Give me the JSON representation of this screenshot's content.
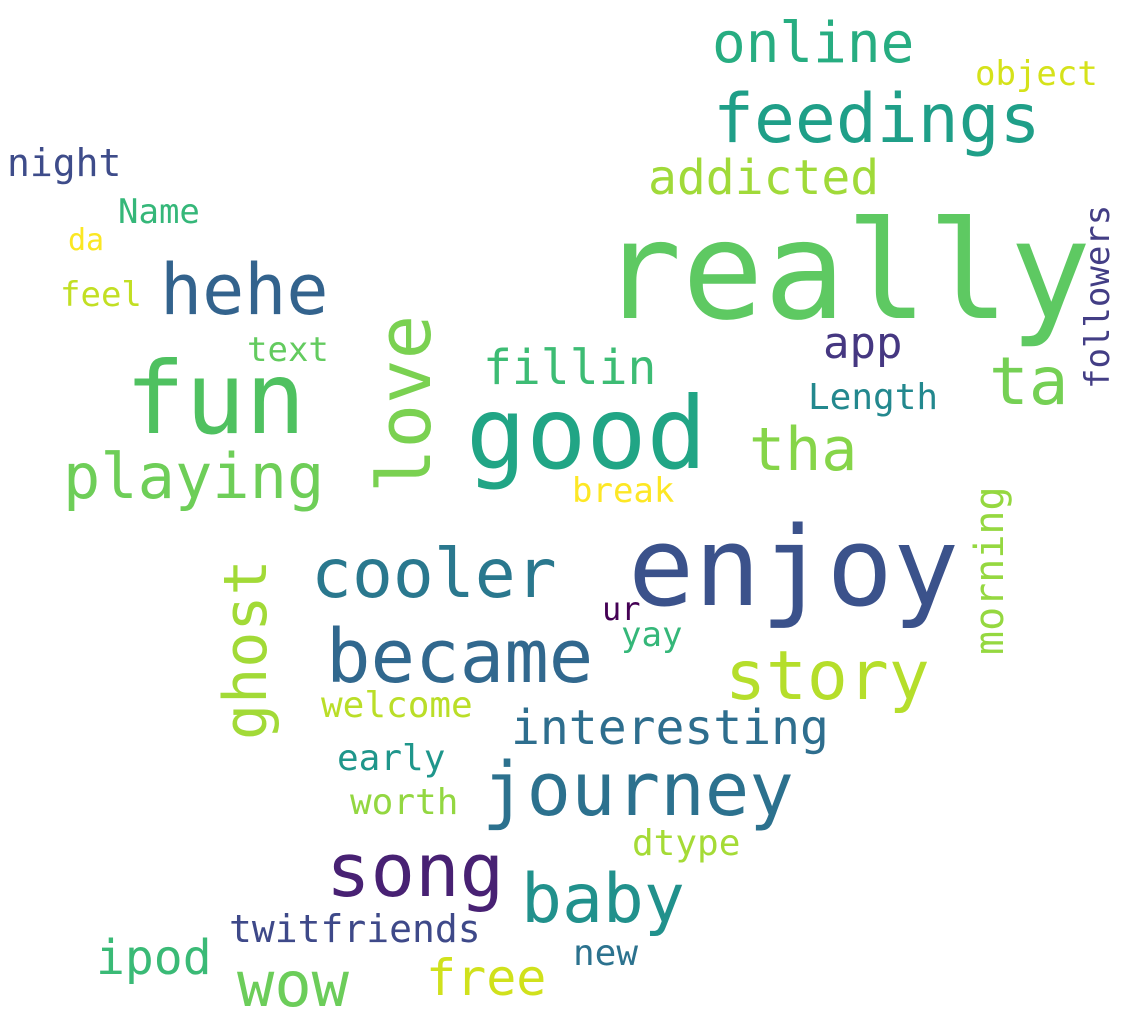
{
  "words": [
    {
      "text": "really",
      "color": "#5ec962",
      "vertical": false
    },
    {
      "text": "enjoy",
      "color": "#3b528b",
      "vertical": false
    },
    {
      "text": "good",
      "color": "#21a585",
      "vertical": false
    },
    {
      "text": "fun",
      "color": "#4fc160",
      "vertical": false
    },
    {
      "text": "love",
      "color": "#7ad151",
      "vertical": true
    },
    {
      "text": "feedings",
      "color": "#1f9f88",
      "vertical": false
    },
    {
      "text": "became",
      "color": "#31688e",
      "vertical": false
    },
    {
      "text": "journey",
      "color": "#2c718e",
      "vertical": false
    },
    {
      "text": "cooler",
      "color": "#2a788e",
      "vertical": false
    },
    {
      "text": "song",
      "color": "#482173",
      "vertical": false
    },
    {
      "text": "hehe",
      "color": "#33638d",
      "vertical": false
    },
    {
      "text": "story",
      "color": "#b5de2b",
      "vertical": false
    },
    {
      "text": "baby",
      "color": "#21918c",
      "vertical": false
    },
    {
      "text": "playing",
      "color": "#6ece58",
      "vertical": false
    },
    {
      "text": "tha",
      "color": "#86d549",
      "vertical": false
    },
    {
      "text": "ghost",
      "color": "#a2da37",
      "vertical": true
    },
    {
      "text": "ta",
      "color": "#75d054",
      "vertical": false
    },
    {
      "text": "wow",
      "color": "#6ccd5a",
      "vertical": false
    },
    {
      "text": "online",
      "color": "#27ad81",
      "vertical": false
    },
    {
      "text": "interesting",
      "color": "#2e6e8e",
      "vertical": false
    },
    {
      "text": "free",
      "color": "#d0e11c",
      "vertical": false
    },
    {
      "text": "addicted",
      "color": "#a0da39",
      "vertical": false
    },
    {
      "text": "fillin",
      "color": "#3dbc74",
      "vertical": false
    },
    {
      "text": "ipod",
      "color": "#3aba76",
      "vertical": false
    },
    {
      "text": "app",
      "color": "#453781",
      "vertical": false
    },
    {
      "text": "morning",
      "color": "#95d840",
      "vertical": true
    },
    {
      "text": "twitfriends",
      "color": "#3e4989",
      "vertical": false
    },
    {
      "text": "followers",
      "color": "#433e85",
      "vertical": true
    },
    {
      "text": "night",
      "color": "#3e4c8a",
      "vertical": false
    },
    {
      "text": "Length",
      "color": "#23888e",
      "vertical": false
    },
    {
      "text": "worth",
      "color": "#93d741",
      "vertical": false
    },
    {
      "text": "early",
      "color": "#1f968b",
      "vertical": false
    },
    {
      "text": "dtype",
      "color": "#a5db36",
      "vertical": false
    },
    {
      "text": "welcome",
      "color": "#bade28",
      "vertical": false
    },
    {
      "text": "Name",
      "color": "#35b779",
      "vertical": false
    },
    {
      "text": "text",
      "color": "#63cb5f",
      "vertical": false
    },
    {
      "text": "new",
      "color": "#2c728e",
      "vertical": false
    },
    {
      "text": "yay",
      "color": "#35b779",
      "vertical": false
    },
    {
      "text": "break",
      "color": "#fde725",
      "vertical": false
    },
    {
      "text": "object",
      "color": "#d5e21a",
      "vertical": false
    },
    {
      "text": "feel",
      "color": "#c2df23",
      "vertical": false
    },
    {
      "text": "ur",
      "color": "#440154",
      "vertical": false
    },
    {
      "text": "da",
      "color": "#fbe723",
      "vertical": false
    }
  ]
}
